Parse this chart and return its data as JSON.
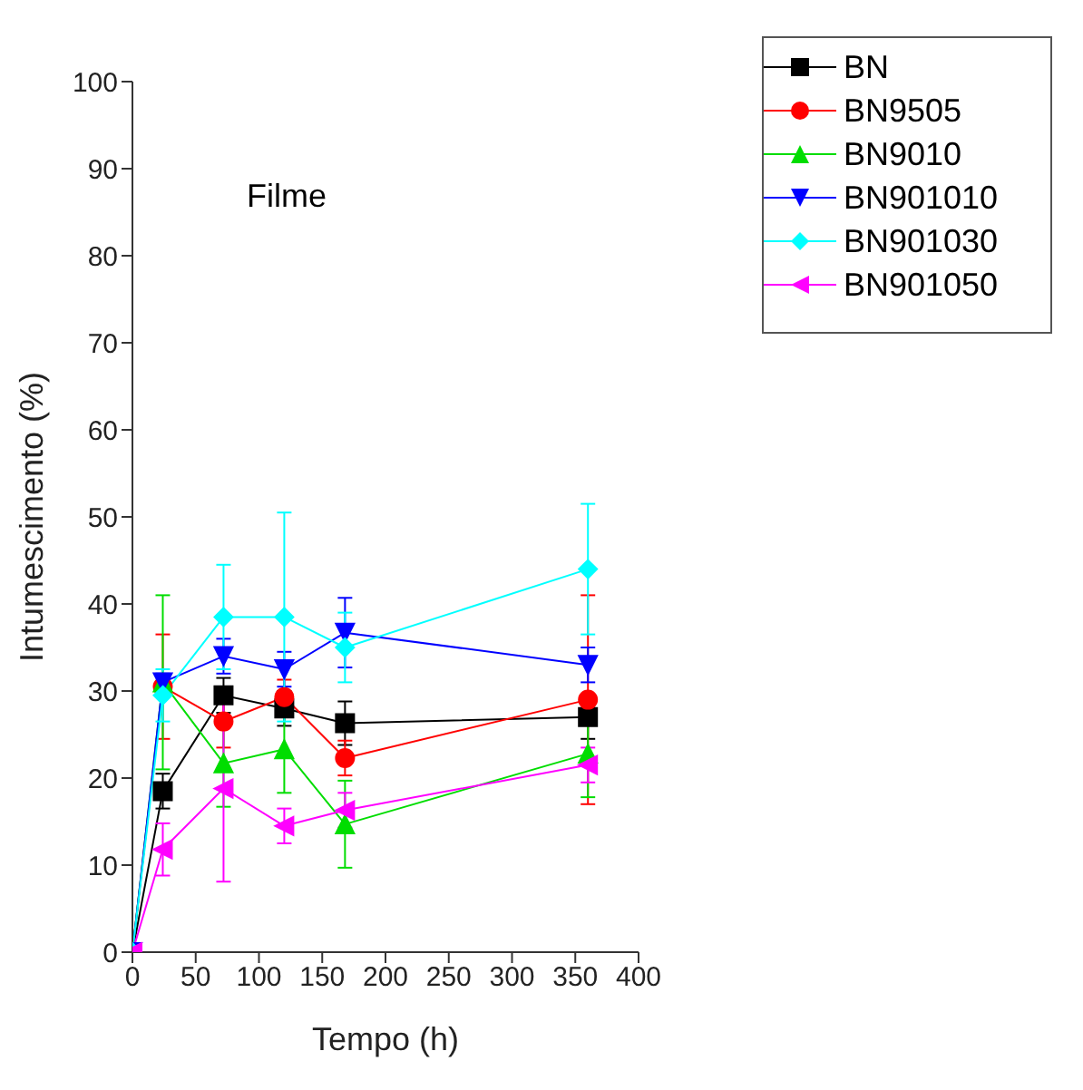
{
  "chart_data": {
    "type": "line",
    "xlabel": "Tempo (h)",
    "ylabel": "Intumescimento (%)",
    "annotations": [
      "Filme"
    ],
    "x": [
      0,
      24,
      72,
      120,
      168,
      360
    ],
    "xlim": [
      0,
      400
    ],
    "xticks": [
      0,
      50,
      100,
      150,
      200,
      250,
      300,
      350,
      400
    ],
    "ylim": [
      0,
      100
    ],
    "yticks": [
      0,
      10,
      20,
      30,
      40,
      50,
      60,
      70,
      80,
      90,
      100
    ],
    "grid": false,
    "legend": "top right",
    "line_style": "solid",
    "series": [
      {
        "name": "BN",
        "color": "#000000",
        "marker": "square",
        "values": [
          0,
          18.5,
          29.5,
          28,
          26.3,
          27
        ],
        "errors": [
          null,
          2,
          2,
          2,
          2.5,
          2.5
        ]
      },
      {
        "name": "BN9505",
        "color": "#ff0000",
        "marker": "circle",
        "values": [
          0,
          30.5,
          26.5,
          29.3,
          22.3,
          29
        ],
        "errors": [
          null,
          6,
          3,
          2,
          2,
          12
        ]
      },
      {
        "name": "BN9010",
        "color": "#00dd00",
        "marker": "triangle",
        "values": [
          0,
          31,
          21.7,
          23.3,
          14.7,
          22.8
        ],
        "errors": [
          null,
          10,
          5,
          5,
          5,
          5
        ]
      },
      {
        "name": "BN901010",
        "color": "#0000ff",
        "marker": "triangle-down",
        "values": [
          0,
          31,
          34,
          32.5,
          36.7,
          33
        ],
        "errors": [
          null,
          1,
          2,
          2,
          4,
          2
        ]
      },
      {
        "name": "BN901030",
        "color": "#00ffff",
        "marker": "diamond",
        "values": [
          0,
          29.5,
          38.5,
          38.5,
          35,
          44
        ],
        "errors": [
          null,
          3,
          6,
          12,
          4,
          7.5
        ]
      },
      {
        "name": "BN901050",
        "color": "#ff00ff",
        "marker": "triangle-left",
        "values": [
          0,
          11.8,
          18.8,
          14.5,
          16.3,
          21.5
        ],
        "errors": [
          null,
          3,
          10.7,
          2,
          2,
          2
        ]
      }
    ]
  }
}
